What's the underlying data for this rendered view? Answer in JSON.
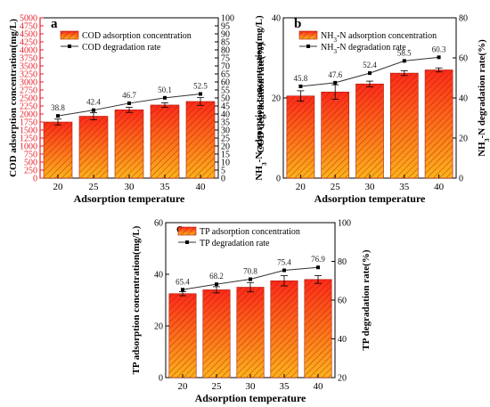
{
  "chart_data": [
    {
      "type": "bar",
      "panel": "a",
      "categories": [
        "20",
        "25",
        "30",
        "35",
        "40"
      ],
      "xlabel": "Adsorption temperature",
      "ylabel_left": "COD adsorption concentration(mg/L)",
      "ylabel_right": "COD degradation rate(%)",
      "ylim_left": [
        0,
        5000
      ],
      "yticks_left": [
        "0",
        "250",
        "500",
        "750",
        "1000",
        "1250",
        "1500",
        "1750",
        "2000",
        "2250",
        "2500",
        "2750",
        "3000",
        "3250",
        "3500",
        "3750",
        "4000",
        "4250",
        "4500",
        "4750",
        "5000"
      ],
      "ylim_right": [
        0,
        100
      ],
      "yticks_right": [
        "0",
        "5",
        "10",
        "15",
        "20",
        "25",
        "30",
        "35",
        "40",
        "45",
        "50",
        "55",
        "60",
        "65",
        "70",
        "75",
        "80",
        "85",
        "90",
        "95",
        "100"
      ],
      "left_axis_color": "#e8222a",
      "grid": false,
      "legend_position": "top-left",
      "series": [
        {
          "name": "COD adsorption concentration",
          "kind": "bar",
          "axis": "left",
          "values": [
            1750,
            1930,
            2130,
            2280,
            2390
          ],
          "errors": [
            90,
            110,
            80,
            70,
            120
          ]
        },
        {
          "name": "COD degradation rate",
          "kind": "line",
          "axis": "right",
          "values": [
            38.8,
            42.4,
            46.7,
            50.1,
            52.5
          ],
          "labels": [
            "38.8",
            "42.4",
            "46.7",
            "50.1",
            "52.5"
          ]
        }
      ]
    },
    {
      "type": "bar",
      "panel": "b",
      "categories": [
        "20",
        "25",
        "30",
        "35",
        "40"
      ],
      "xlabel": "Adsorption temperature",
      "ylabel_left_parts": [
        "NH",
        "3",
        "-N adsorption concentration(mg/L)"
      ],
      "ylabel_right_parts": [
        "NH",
        "3",
        "-N degradation rate(%)"
      ],
      "ylim_left": [
        0,
        40
      ],
      "yticks_left": [
        "0",
        "20",
        "40"
      ],
      "ylim_right": [
        0,
        80
      ],
      "yticks_right": [
        "0",
        "20",
        "40",
        "60",
        "80"
      ],
      "grid": false,
      "legend_position": "top-left",
      "series": [
        {
          "name_parts": [
            "NH",
            "3",
            "-N adsorption concentration"
          ],
          "kind": "bar",
          "axis": "left",
          "values": [
            20.5,
            21.5,
            23.5,
            26.2,
            27.0
          ],
          "errors": [
            1.3,
            1.8,
            0.7,
            0.6,
            0.5
          ]
        },
        {
          "name_parts": [
            "NH",
            "3",
            "-N degradation rate"
          ],
          "kind": "line",
          "axis": "right",
          "values": [
            45.8,
            47.6,
            52.4,
            58.5,
            60.3
          ],
          "labels": [
            "45.8",
            "47.6",
            "52.4",
            "58.5",
            "60.3"
          ]
        }
      ]
    },
    {
      "type": "bar",
      "panel": "c",
      "categories": [
        "20",
        "25",
        "30",
        "35",
        "40"
      ],
      "xlabel": "Adsorption temperature",
      "ylabel_left": "TP adsorption concentration(mg/L)",
      "ylabel_right": "TP degradation rate(%)",
      "ylim_left": [
        0,
        60
      ],
      "yticks_left": [
        "0",
        "20",
        "40",
        "60"
      ],
      "ylim_right": [
        20,
        100
      ],
      "yticks_right": [
        "20",
        "40",
        "60",
        "80",
        "100"
      ],
      "grid": false,
      "legend_position": "top-left",
      "series": [
        {
          "name": "TP adsorption concentration",
          "kind": "bar",
          "axis": "left",
          "values": [
            32.5,
            34.0,
            35.0,
            37.5,
            38.0
          ],
          "errors": [
            0.8,
            1.2,
            1.8,
            2.0,
            1.5
          ]
        },
        {
          "name": "TP degradation rate",
          "kind": "line",
          "axis": "right",
          "values": [
            65.4,
            68.2,
            70.8,
            75.4,
            76.9
          ],
          "labels": [
            "65.4",
            "68.2",
            "70.8",
            "75.4",
            "76.9"
          ]
        }
      ]
    }
  ],
  "colors": {
    "bar_top": "#ff2a1a",
    "bar_bottom": "#ffb21c",
    "hatch": "#6a1a00",
    "line": "#333333",
    "left_axis_a": "#e8222a"
  }
}
